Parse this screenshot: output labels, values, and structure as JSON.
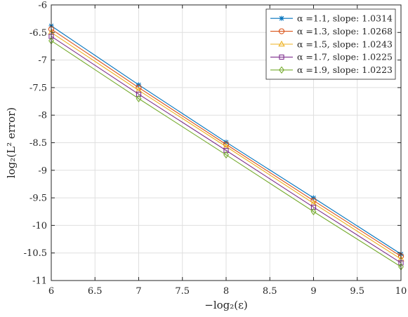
{
  "chart_data": {
    "type": "line",
    "title": "",
    "xlabel": "−log₂(ε)",
    "ylabel": "log₂(L² error)",
    "xlim": [
      6,
      10
    ],
    "ylim": [
      -11,
      -6
    ],
    "xticks": [
      "6",
      "6.5",
      "7",
      "7.5",
      "8",
      "8.5",
      "9",
      "9.5",
      "10"
    ],
    "yticks": [
      "-6",
      "-6.5",
      "-7",
      "-7.5",
      "-8",
      "-8.5",
      "-9",
      "-9.5",
      "-10",
      "-10.5",
      "-11"
    ],
    "grid": true,
    "legend_position": "top-right",
    "x": [
      6,
      7,
      8,
      9,
      10
    ],
    "series": [
      {
        "name": "α =1.1, slope: 1.0314",
        "color": "#0072BD",
        "marker": "asterisk",
        "values": [
          -6.38,
          -7.45,
          -8.49,
          -9.5,
          -10.52
        ]
      },
      {
        "name": "α =1.3, slope: 1.0268",
        "color": "#D95319",
        "marker": "circle",
        "values": [
          -6.44,
          -7.5,
          -8.53,
          -9.55,
          -10.56
        ]
      },
      {
        "name": "α =1.5, slope: 1.0243",
        "color": "#EDB120",
        "marker": "triangle",
        "values": [
          -6.5,
          -7.55,
          -8.57,
          -9.6,
          -10.61
        ]
      },
      {
        "name": "α =1.7, slope: 1.0225",
        "color": "#7E2F8E",
        "marker": "square",
        "values": [
          -6.57,
          -7.62,
          -8.64,
          -9.67,
          -10.68
        ]
      },
      {
        "name": "α =1.9, slope: 1.0223",
        "color": "#77AC30",
        "marker": "diamond",
        "values": [
          -6.65,
          -7.7,
          -8.72,
          -9.75,
          -10.75
        ]
      }
    ]
  }
}
